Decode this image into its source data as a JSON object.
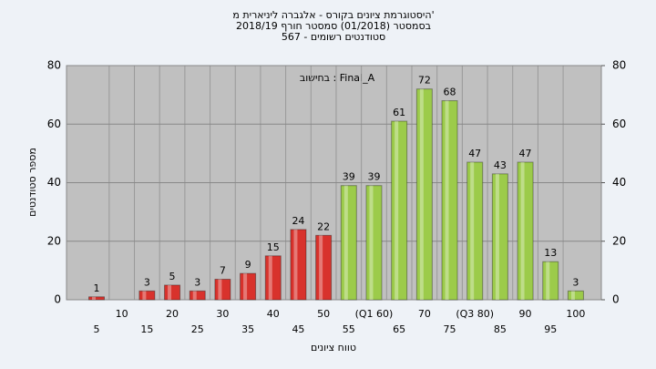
{
  "chart_data": {
    "type": "bar",
    "title": [
      "היסטוגרמת ציונים בקורס - אלגברה ליניארית מ'",
      "בסמסטר (01/2018) סמסטר חורף 2018/19",
      "סטודנטים רשומים - 567"
    ],
    "annotation": "בחישוב : Final_A",
    "xlabel": "טווח ציונים",
    "ylabel": "מספר סטודנטים",
    "categories": [
      "5",
      "10",
      "15",
      "20",
      "25",
      "30",
      "35",
      "40",
      "45",
      "50",
      "55",
      "(Q1 60)",
      "65",
      "70",
      "75",
      "(Q3 80)",
      "85",
      "90",
      "95",
      "100"
    ],
    "values": [
      1,
      0,
      3,
      5,
      3,
      7,
      9,
      15,
      24,
      22,
      39,
      39,
      61,
      72,
      68,
      47,
      43,
      47,
      13,
      3
    ],
    "value_labels": [
      "1",
      null,
      "3",
      "5",
      "3",
      "7",
      "9",
      "15",
      "24",
      "22",
      "39",
      "39",
      "61",
      "72",
      "68",
      "47",
      "43",
      "47",
      "13",
      "3"
    ],
    "colors": [
      "#d8322c",
      "#d8322c",
      "#d8322c",
      "#d8322c",
      "#d8322c",
      "#d8322c",
      "#d8322c",
      "#d8322c",
      "#d8322c",
      "#d8322c",
      "#9ccb4a",
      "#9ccb4a",
      "#9ccb4a",
      "#9ccb4a",
      "#9ccb4a",
      "#9ccb4a",
      "#9ccb4a",
      "#9ccb4a",
      "#9ccb4a",
      "#9ccb4a"
    ],
    "ylim": [
      0,
      80
    ],
    "yticks": [
      0,
      20,
      40,
      60,
      80
    ],
    "y2lim": [
      0,
      80
    ],
    "y2ticks": [
      0,
      20,
      40,
      60,
      80
    ],
    "grid": true
  }
}
